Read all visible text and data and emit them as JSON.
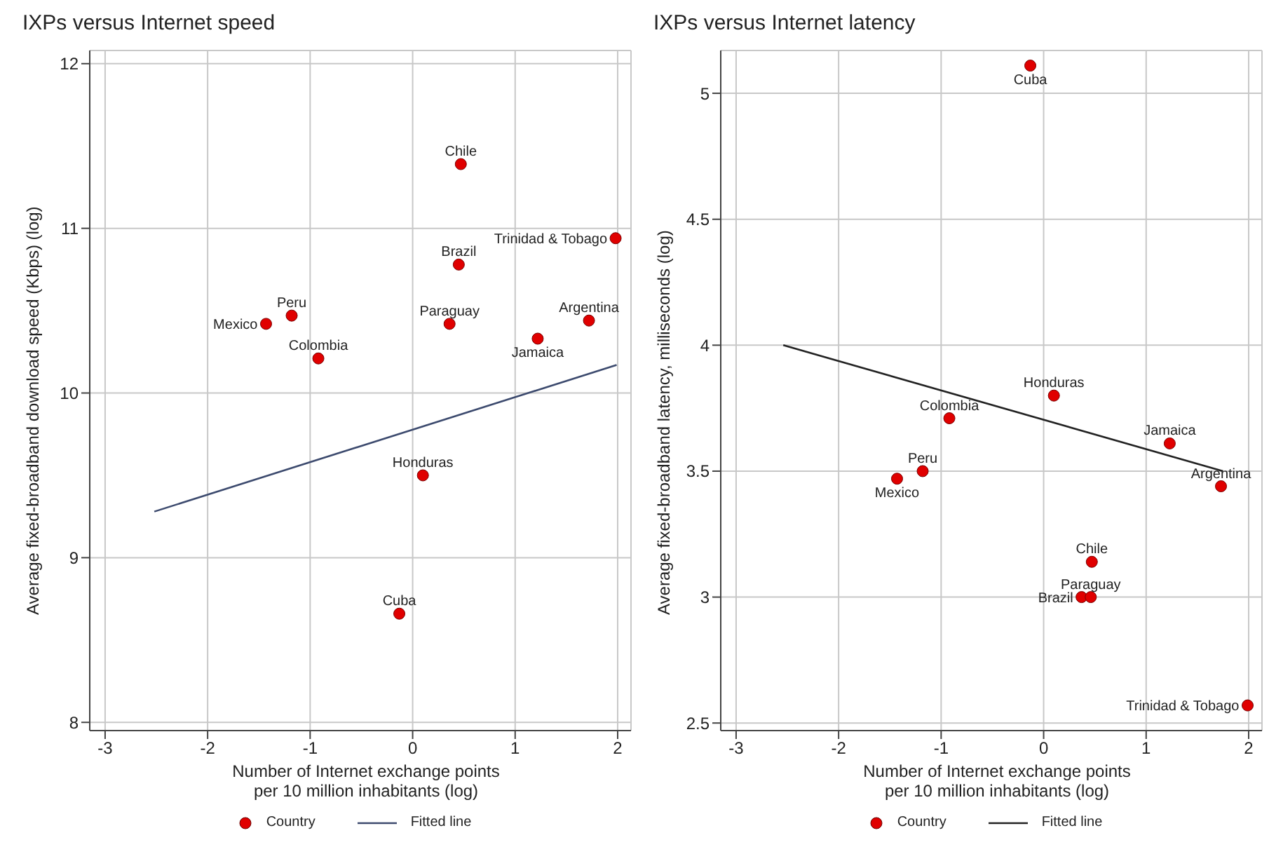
{
  "chart_data": [
    {
      "type": "scatter",
      "title": "IXPs versus Internet speed",
      "xlabel": "Number of Internet exchange points\nper 10 million inhabitants (log)",
      "ylabel": "Average fixed-broadband download speed (Kbps) (log)",
      "xlim": [
        -3.15,
        2.13
      ],
      "xticks": [
        -3,
        -2,
        -1,
        0,
        1,
        2
      ],
      "ylim": [
        7.95,
        12.08
      ],
      "yticks": [
        8,
        9,
        10,
        11,
        12
      ],
      "grid": true,
      "legend": "bottom",
      "series": [
        {
          "name": "Country",
          "color": "#e00000",
          "marker": "circle",
          "x": [
            0.47,
            1.98,
            0.45,
            -1.18,
            -1.43,
            0.36,
            1.72,
            1.22,
            -0.92,
            0.1,
            -0.13
          ],
          "values": [
            11.39,
            10.94,
            10.78,
            10.47,
            10.42,
            10.42,
            10.44,
            10.33,
            10.21,
            9.5,
            8.66
          ]
        },
        {
          "name": "Fitted line",
          "type": "line",
          "color": "#3c4a6e",
          "line_style": "solid",
          "x": [
            -2.52,
            1.99
          ],
          "values": [
            9.28,
            10.17
          ]
        }
      ],
      "annotations": [
        {
          "text": "Chile",
          "x": 0.47,
          "y": 11.39
        },
        {
          "text": "Trinidad & Tobago",
          "x": 1.98,
          "y": 10.94
        },
        {
          "text": "Brazil",
          "x": 0.45,
          "y": 10.78
        },
        {
          "text": "Peru",
          "x": -1.18,
          "y": 10.47
        },
        {
          "text": "Mexico",
          "x": -1.43,
          "y": 10.42
        },
        {
          "text": "Paraguay",
          "x": 0.36,
          "y": 10.42
        },
        {
          "text": "Argentina",
          "x": 1.72,
          "y": 10.44
        },
        {
          "text": "Jamaica",
          "x": 1.22,
          "y": 10.33
        },
        {
          "text": "Colombia",
          "x": -0.92,
          "y": 10.21
        },
        {
          "text": "Honduras",
          "x": 0.1,
          "y": 9.5
        },
        {
          "text": "Cuba",
          "x": -0.13,
          "y": 8.66
        }
      ]
    },
    {
      "type": "scatter",
      "title": "IXPs versus Internet latency",
      "xlabel": "Number of Internet exchange points\nper 10 million inhabitants (log)",
      "ylabel": "Average fixed-broadband latency, milliseconds (log)",
      "xlim": [
        -3.15,
        2.13
      ],
      "xticks": [
        -3,
        -2,
        -1,
        0,
        1,
        2
      ],
      "ylim": [
        2.47,
        5.17
      ],
      "yticks": [
        2.5,
        3,
        3.5,
        4,
        4.5,
        5
      ],
      "grid": true,
      "legend": "bottom",
      "series": [
        {
          "name": "Country",
          "color": "#e00000",
          "marker": "circle",
          "x": [
            -0.13,
            0.1,
            -0.92,
            1.23,
            1.73,
            -1.18,
            -1.43,
            0.47,
            0.37,
            0.46,
            1.99
          ],
          "values": [
            5.11,
            3.8,
            3.71,
            3.61,
            3.44,
            3.5,
            3.47,
            3.14,
            3.0,
            3.0,
            2.57
          ]
        },
        {
          "name": "Fitted line",
          "type": "line",
          "color": "#222222",
          "line_style": "solid",
          "x": [
            -2.54,
            1.75
          ],
          "values": [
            4.0,
            3.5
          ]
        }
      ],
      "annotations": [
        {
          "text": "Cuba",
          "x": -0.13,
          "y": 5.11
        },
        {
          "text": "Honduras",
          "x": 0.1,
          "y": 3.8
        },
        {
          "text": "Colombia",
          "x": -0.92,
          "y": 3.71
        },
        {
          "text": "Jamaica",
          "x": 1.23,
          "y": 3.61
        },
        {
          "text": "Argentina",
          "x": 1.73,
          "y": 3.44
        },
        {
          "text": "Peru",
          "x": -1.18,
          "y": 3.5
        },
        {
          "text": "Mexico",
          "x": -1.43,
          "y": 3.47
        },
        {
          "text": "Chile",
          "x": 0.47,
          "y": 3.14
        },
        {
          "text": "Brazil",
          "x": 0.37,
          "y": 3.0
        },
        {
          "text": "Paraguay",
          "x": 0.46,
          "y": 3.0
        },
        {
          "text": "Trinidad & Tobago",
          "x": 1.99,
          "y": 2.57
        }
      ]
    }
  ]
}
